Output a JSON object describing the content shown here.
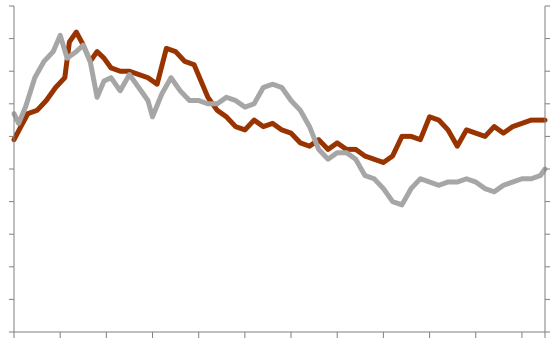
{
  "chart_data": {
    "type": "line",
    "title": "",
    "xlabel": "",
    "ylabel": "",
    "grid": false,
    "legend": "none",
    "x_count": 12,
    "xlim": [
      0,
      11.5
    ],
    "ylim": [
      0,
      10
    ],
    "y2lim": [
      0,
      10
    ],
    "x_ticks": [
      0,
      1,
      2,
      3,
      4,
      5,
      6,
      7,
      8,
      9,
      10,
      11,
      11.5
    ],
    "y_ticks": [
      0,
      1,
      2,
      3,
      4,
      5,
      6,
      7,
      8,
      9,
      10
    ],
    "y2_ticks": [
      0,
      1,
      2,
      3,
      4,
      5,
      6,
      7,
      8,
      9,
      10
    ],
    "series": [
      {
        "color": "#993300",
        "axis": "left",
        "points": [
          [
            0.0,
            5.9
          ],
          [
            0.15,
            6.3
          ],
          [
            0.3,
            6.7
          ],
          [
            0.5,
            6.8
          ],
          [
            0.7,
            7.1
          ],
          [
            0.9,
            7.5
          ],
          [
            1.1,
            7.8
          ],
          [
            1.2,
            8.9
          ],
          [
            1.35,
            9.2
          ],
          [
            1.5,
            8.8
          ],
          [
            1.65,
            8.3
          ],
          [
            1.8,
            8.6
          ],
          [
            1.95,
            8.4
          ],
          [
            2.1,
            8.1
          ],
          [
            2.3,
            8.0
          ],
          [
            2.5,
            8.0
          ],
          [
            2.7,
            7.9
          ],
          [
            2.9,
            7.8
          ],
          [
            3.1,
            7.6
          ],
          [
            3.3,
            8.7
          ],
          [
            3.5,
            8.6
          ],
          [
            3.7,
            8.3
          ],
          [
            3.9,
            8.2
          ],
          [
            4.05,
            7.7
          ],
          [
            4.2,
            7.2
          ],
          [
            4.4,
            6.8
          ],
          [
            4.6,
            6.6
          ],
          [
            4.8,
            6.3
          ],
          [
            5.0,
            6.2
          ],
          [
            5.2,
            6.5
          ],
          [
            5.4,
            6.3
          ],
          [
            5.6,
            6.4
          ],
          [
            5.8,
            6.2
          ],
          [
            6.0,
            6.1
          ],
          [
            6.2,
            5.8
          ],
          [
            6.4,
            5.7
          ],
          [
            6.6,
            5.9
          ],
          [
            6.8,
            5.6
          ],
          [
            7.0,
            5.8
          ],
          [
            7.2,
            5.6
          ],
          [
            7.4,
            5.6
          ],
          [
            7.6,
            5.4
          ],
          [
            7.8,
            5.3
          ],
          [
            8.0,
            5.2
          ],
          [
            8.2,
            5.4
          ],
          [
            8.4,
            6.0
          ],
          [
            8.6,
            6.0
          ],
          [
            8.8,
            5.9
          ],
          [
            9.0,
            6.6
          ],
          [
            9.2,
            6.5
          ],
          [
            9.4,
            6.2
          ],
          [
            9.6,
            5.7
          ],
          [
            9.8,
            6.2
          ],
          [
            10.0,
            6.1
          ],
          [
            10.2,
            6.0
          ],
          [
            10.4,
            6.3
          ],
          [
            10.6,
            6.1
          ],
          [
            10.8,
            6.3
          ],
          [
            11.0,
            6.4
          ],
          [
            11.2,
            6.5
          ],
          [
            11.4,
            6.5
          ],
          [
            11.5,
            6.5
          ]
        ]
      },
      {
        "color": "#a6a6a6",
        "axis": "left",
        "points": [
          [
            0.0,
            6.7
          ],
          [
            0.1,
            6.4
          ],
          [
            0.25,
            6.9
          ],
          [
            0.45,
            7.8
          ],
          [
            0.65,
            8.3
          ],
          [
            0.85,
            8.6
          ],
          [
            1.0,
            9.1
          ],
          [
            1.15,
            8.4
          ],
          [
            1.35,
            8.6
          ],
          [
            1.5,
            8.8
          ],
          [
            1.65,
            8.3
          ],
          [
            1.8,
            7.2
          ],
          [
            1.95,
            7.7
          ],
          [
            2.1,
            7.8
          ],
          [
            2.3,
            7.4
          ],
          [
            2.5,
            7.9
          ],
          [
            2.7,
            7.5
          ],
          [
            2.9,
            7.1
          ],
          [
            3.0,
            6.6
          ],
          [
            3.2,
            7.3
          ],
          [
            3.4,
            7.8
          ],
          [
            3.6,
            7.4
          ],
          [
            3.8,
            7.1
          ],
          [
            4.0,
            7.1
          ],
          [
            4.2,
            7.0
          ],
          [
            4.4,
            7.0
          ],
          [
            4.6,
            7.2
          ],
          [
            4.8,
            7.1
          ],
          [
            5.0,
            6.9
          ],
          [
            5.2,
            7.0
          ],
          [
            5.4,
            7.5
          ],
          [
            5.6,
            7.6
          ],
          [
            5.8,
            7.5
          ],
          [
            6.0,
            7.1
          ],
          [
            6.2,
            6.8
          ],
          [
            6.4,
            6.3
          ],
          [
            6.6,
            5.6
          ],
          [
            6.8,
            5.3
          ],
          [
            7.0,
            5.5
          ],
          [
            7.2,
            5.5
          ],
          [
            7.4,
            5.3
          ],
          [
            7.6,
            4.8
          ],
          [
            7.8,
            4.7
          ],
          [
            8.0,
            4.4
          ],
          [
            8.2,
            4.0
          ],
          [
            8.4,
            3.9
          ],
          [
            8.6,
            4.4
          ],
          [
            8.8,
            4.7
          ],
          [
            9.0,
            4.6
          ],
          [
            9.2,
            4.5
          ],
          [
            9.4,
            4.6
          ],
          [
            9.6,
            4.6
          ],
          [
            9.8,
            4.7
          ],
          [
            10.0,
            4.6
          ],
          [
            10.2,
            4.4
          ],
          [
            10.4,
            4.3
          ],
          [
            10.6,
            4.5
          ],
          [
            10.8,
            4.6
          ],
          [
            11.0,
            4.7
          ],
          [
            11.2,
            4.7
          ],
          [
            11.4,
            4.8
          ],
          [
            11.5,
            5.0
          ]
        ]
      }
    ]
  }
}
